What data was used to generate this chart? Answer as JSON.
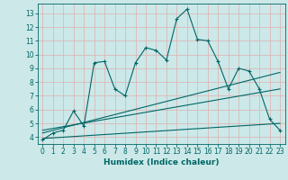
{
  "xlabel": "Humidex (Indice chaleur)",
  "background_color": "#cce8e8",
  "grid_color": "#ddb8b8",
  "line_color": "#006666",
  "xlim": [
    -0.5,
    23.5
  ],
  "ylim": [
    3.5,
    13.7
  ],
  "xticks": [
    0,
    1,
    2,
    3,
    4,
    5,
    6,
    7,
    8,
    9,
    10,
    11,
    12,
    13,
    14,
    15,
    16,
    17,
    18,
    19,
    20,
    21,
    22,
    23
  ],
  "yticks": [
    4,
    5,
    6,
    7,
    8,
    9,
    10,
    11,
    12,
    13
  ],
  "series1_x": [
    0,
    1,
    2,
    3,
    4,
    5,
    6,
    7,
    8,
    9,
    10,
    11,
    12,
    13,
    14,
    15,
    16,
    17,
    18,
    19,
    20,
    21,
    22,
    23
  ],
  "series1_y": [
    3.8,
    4.3,
    4.5,
    5.9,
    4.8,
    9.4,
    9.5,
    7.5,
    7.0,
    9.4,
    10.5,
    10.3,
    9.6,
    12.6,
    13.3,
    11.1,
    11.0,
    9.5,
    7.5,
    9.0,
    8.8,
    7.5,
    5.3,
    4.5
  ],
  "series2_x": [
    0,
    23
  ],
  "series2_y": [
    4.5,
    7.5
  ],
  "series3_x": [
    0,
    23
  ],
  "series3_y": [
    4.3,
    8.7
  ],
  "series4_x": [
    0,
    23
  ],
  "series4_y": [
    3.9,
    5.0
  ]
}
